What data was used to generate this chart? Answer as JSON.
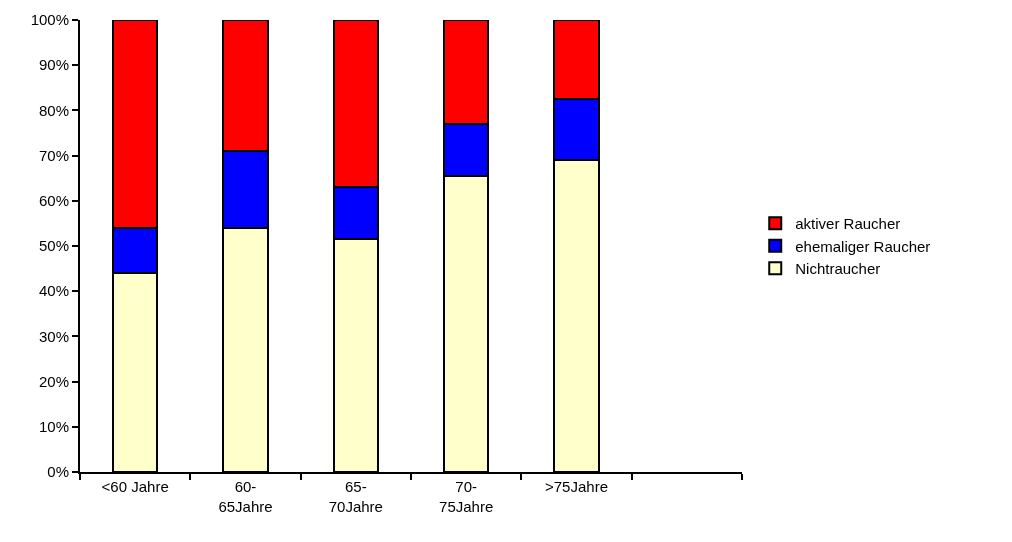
{
  "chart_data": {
    "type": "bar",
    "stacked": true,
    "legend": "right",
    "grid": false,
    "categories": [
      "<60 Jahre",
      "60-\n65Jahre",
      "65-\n70Jahre",
      "70-\n75Jahre",
      ">75Jahre",
      null
    ],
    "series": [
      {
        "name": "Nichtraucher",
        "color": "#ffffcc",
        "values": [
          44,
          54,
          51.5,
          65.5,
          69,
          null
        ]
      },
      {
        "name": "ehemaliger Raucher",
        "color": "#0000ff",
        "values": [
          10,
          17,
          11.5,
          11.5,
          13.5,
          null
        ]
      },
      {
        "name": "aktiver Raucher",
        "color": "#ff0000",
        "values": [
          46,
          29,
          37,
          23,
          17.5,
          null
        ]
      }
    ],
    "ylim": [
      0,
      100
    ],
    "yticks": [
      {
        "value": 0,
        "label": "0%"
      },
      {
        "value": 10,
        "label": "10%"
      },
      {
        "value": 20,
        "label": "20%"
      },
      {
        "value": 30,
        "label": "30%"
      },
      {
        "value": 40,
        "label": "40%"
      },
      {
        "value": 50,
        "label": "50%"
      },
      {
        "value": 60,
        "label": "60%"
      },
      {
        "value": 70,
        "label": "70%"
      },
      {
        "value": 80,
        "label": "80%"
      },
      {
        "value": 90,
        "label": "90%"
      },
      {
        "value": 100,
        "label": "100%"
      }
    ]
  }
}
